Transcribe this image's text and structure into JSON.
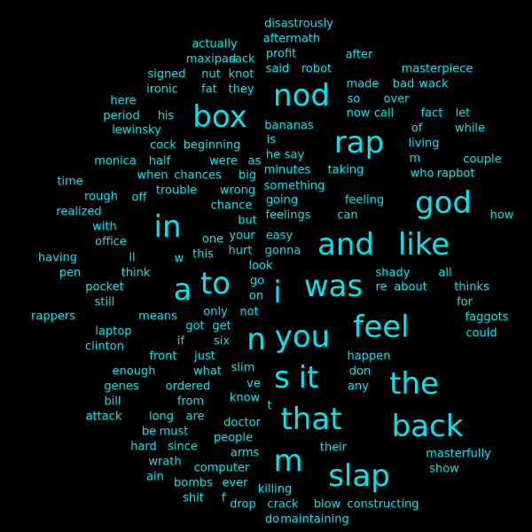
{
  "colors": {
    "background": "#000000",
    "text": "#00e5ee"
  },
  "words": [
    {
      "text": "disastrously"
    },
    {
      "text": "aftermath"
    },
    {
      "text": "actually"
    },
    {
      "text": "profit"
    },
    {
      "text": "after"
    },
    {
      "text": "maxipad"
    },
    {
      "text": "sack"
    },
    {
      "text": "said"
    },
    {
      "text": "robot"
    },
    {
      "text": "masterpiece"
    },
    {
      "text": "signed"
    },
    {
      "text": "nut"
    },
    {
      "text": "knot"
    },
    {
      "text": "made"
    },
    {
      "text": "bad"
    },
    {
      "text": "wack"
    },
    {
      "text": "ironic"
    },
    {
      "text": "fat"
    },
    {
      "text": "they"
    },
    {
      "text": "nod"
    },
    {
      "text": "so"
    },
    {
      "text": "over"
    },
    {
      "text": "here"
    },
    {
      "text": "box"
    },
    {
      "text": "now"
    },
    {
      "text": "call"
    },
    {
      "text": "fact"
    },
    {
      "text": "let"
    },
    {
      "text": "period"
    },
    {
      "text": "his"
    },
    {
      "text": "bananas"
    },
    {
      "text": "of"
    },
    {
      "text": "while"
    },
    {
      "text": "lewinsky"
    },
    {
      "text": "rap"
    },
    {
      "text": "is"
    },
    {
      "text": "living"
    },
    {
      "text": "cock"
    },
    {
      "text": "beginning"
    },
    {
      "text": "he"
    },
    {
      "text": "say"
    },
    {
      "text": "m"
    },
    {
      "text": "couple"
    },
    {
      "text": "monica"
    },
    {
      "text": "half"
    },
    {
      "text": "were"
    },
    {
      "text": "as"
    },
    {
      "text": "minutes"
    },
    {
      "text": "taking"
    },
    {
      "text": "who"
    },
    {
      "text": "rapbot"
    },
    {
      "text": "when"
    },
    {
      "text": "chances"
    },
    {
      "text": "big"
    },
    {
      "text": "time"
    },
    {
      "text": "something"
    },
    {
      "text": "trouble"
    },
    {
      "text": "wrong"
    },
    {
      "text": "god"
    },
    {
      "text": "rough"
    },
    {
      "text": "off"
    },
    {
      "text": "going"
    },
    {
      "text": "feeling"
    },
    {
      "text": "chance"
    },
    {
      "text": "realized"
    },
    {
      "text": "feelings"
    },
    {
      "text": "can"
    },
    {
      "text": "how"
    },
    {
      "text": "in"
    },
    {
      "text": "but"
    },
    {
      "text": "with"
    },
    {
      "text": "your"
    },
    {
      "text": "easy"
    },
    {
      "text": "and"
    },
    {
      "text": "like"
    },
    {
      "text": "office"
    },
    {
      "text": "one"
    },
    {
      "text": "hurt"
    },
    {
      "text": "gonna"
    },
    {
      "text": "having"
    },
    {
      "text": "ll"
    },
    {
      "text": "w"
    },
    {
      "text": "this"
    },
    {
      "text": "look"
    },
    {
      "text": "pen"
    },
    {
      "text": "think"
    },
    {
      "text": "shady"
    },
    {
      "text": "all"
    },
    {
      "text": "was"
    },
    {
      "text": "to"
    },
    {
      "text": "go"
    },
    {
      "text": "i"
    },
    {
      "text": "re"
    },
    {
      "text": "about"
    },
    {
      "text": "thinks"
    },
    {
      "text": "a"
    },
    {
      "text": "pocket"
    },
    {
      "text": "on"
    },
    {
      "text": "for"
    },
    {
      "text": "still"
    },
    {
      "text": "only"
    },
    {
      "text": "not"
    },
    {
      "text": "rappers"
    },
    {
      "text": "means"
    },
    {
      "text": "feel"
    },
    {
      "text": "faggots"
    },
    {
      "text": "laptop"
    },
    {
      "text": "got"
    },
    {
      "text": "get"
    },
    {
      "text": "you"
    },
    {
      "text": "could"
    },
    {
      "text": "n"
    },
    {
      "text": "if"
    },
    {
      "text": "six"
    },
    {
      "text": "clinton"
    },
    {
      "text": "front"
    },
    {
      "text": "just"
    },
    {
      "text": "happen"
    },
    {
      "text": "slim"
    },
    {
      "text": "enough"
    },
    {
      "text": "what"
    },
    {
      "text": "don"
    },
    {
      "text": "s"
    },
    {
      "text": "it"
    },
    {
      "text": "the"
    },
    {
      "text": "genes"
    },
    {
      "text": "ordered"
    },
    {
      "text": "ve"
    },
    {
      "text": "any"
    },
    {
      "text": "bill"
    },
    {
      "text": "from"
    },
    {
      "text": "know"
    },
    {
      "text": "t"
    },
    {
      "text": "that"
    },
    {
      "text": "attack"
    },
    {
      "text": "long"
    },
    {
      "text": "are"
    },
    {
      "text": "doctor"
    },
    {
      "text": "back"
    },
    {
      "text": "be"
    },
    {
      "text": "must"
    },
    {
      "text": "people"
    },
    {
      "text": "hard"
    },
    {
      "text": "since"
    },
    {
      "text": "arms"
    },
    {
      "text": "their"
    },
    {
      "text": "masterfully"
    },
    {
      "text": "wrath"
    },
    {
      "text": "m"
    },
    {
      "text": "computer"
    },
    {
      "text": "show"
    },
    {
      "text": "ain"
    },
    {
      "text": "slap"
    },
    {
      "text": "bombs"
    },
    {
      "text": "ever"
    },
    {
      "text": "killing"
    },
    {
      "text": "shit"
    },
    {
      "text": "f"
    },
    {
      "text": "drop"
    },
    {
      "text": "crack"
    },
    {
      "text": "blow"
    },
    {
      "text": "constructing"
    },
    {
      "text": "do"
    },
    {
      "text": "maintaining"
    }
  ]
}
